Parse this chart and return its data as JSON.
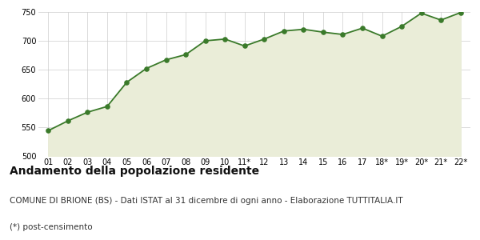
{
  "x_labels": [
    "01",
    "02",
    "03",
    "04",
    "05",
    "06",
    "07",
    "08",
    "09",
    "10",
    "11*",
    "12",
    "13",
    "14",
    "15",
    "16",
    "17",
    "18*",
    "19*",
    "20*",
    "21*",
    "22*"
  ],
  "values": [
    544,
    561,
    576,
    586,
    628,
    652,
    667,
    676,
    700,
    703,
    691,
    703,
    717,
    720,
    715,
    711,
    722,
    708,
    725,
    748,
    736,
    749
  ],
  "ylim": [
    500,
    750
  ],
  "yticks": [
    500,
    550,
    600,
    650,
    700,
    750
  ],
  "line_color": "#3a7a2a",
  "fill_color": "#eaedd8",
  "marker_color": "#3a7a2a",
  "bg_color": "#ffffff",
  "grid_color": "#cccccc",
  "title": "Andamento della popolazione residente",
  "subtitle": "COMUNE DI BRIONE (BS) - Dati ISTAT al 31 dicembre di ogni anno - Elaborazione TUTTITALIA.IT",
  "footnote": "(*) post-censimento",
  "title_fontsize": 10,
  "subtitle_fontsize": 7.5,
  "footnote_fontsize": 7.5
}
